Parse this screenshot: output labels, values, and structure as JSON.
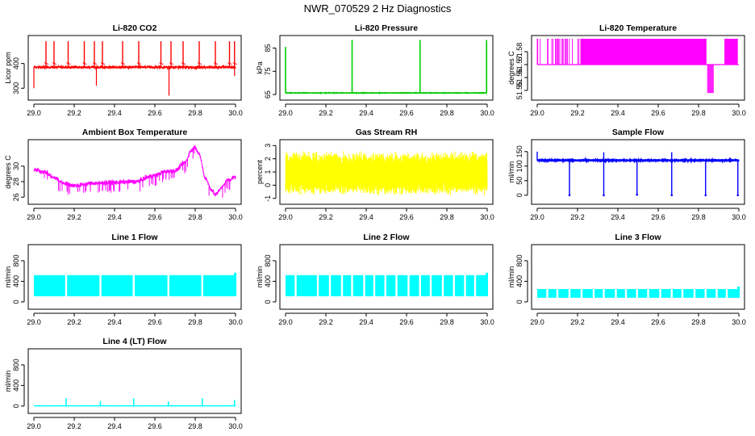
{
  "page_title": "NWR_070529  2 Hz Diagnostics",
  "chart_data": [
    {
      "type": "line",
      "title": "Li-820 CO2",
      "ylabel": "Licor ppm",
      "color": "#ff0000",
      "xlim": [
        29.0,
        30.0
      ],
      "xticks": [
        29.0,
        29.2,
        29.4,
        29.6,
        29.8,
        30.0
      ],
      "ylim": [
        265,
        500
      ],
      "yticks": [
        300,
        400
      ],
      "series": [
        {
          "pattern": "noisy_baseline_with_spikes",
          "baseline": 385,
          "noise": 8,
          "spikes_up": [
            29.06,
            29.1,
            29.17,
            29.25,
            29.3,
            29.34,
            29.44,
            29.52,
            29.63,
            29.68,
            29.74,
            29.82,
            29.9,
            29.97,
            29.995
          ],
          "spike_top": 490,
          "spikes_down": [
            [
              29.0,
              300
            ],
            [
              29.31,
              310
            ],
            [
              29.67,
              270
            ],
            [
              29.995,
              350
            ]
          ]
        }
      ]
    },
    {
      "type": "line",
      "title": "Li-820 Pressure",
      "ylabel": "kPa",
      "color": "#00cc00",
      "xlim": [
        29.0,
        30.0
      ],
      "xticks": [
        29.0,
        29.2,
        29.4,
        29.6,
        29.8,
        30.0
      ],
      "ylim": [
        64,
        89
      ],
      "yticks": [
        65,
        75,
        85
      ],
      "series": [
        {
          "pattern": "flat_with_spikes",
          "baseline": 65.7,
          "noise": 0.15,
          "spikes_up": [
            [
              29.0,
              85.5
            ],
            [
              29.33,
              88.5
            ],
            [
              29.667,
              88.5
            ],
            [
              29.997,
              88.5
            ]
          ]
        }
      ]
    },
    {
      "type": "line",
      "title": "Li-820 Temperature",
      "ylabel": "degrees C",
      "color": "#ff00ff",
      "xlim": [
        29.0,
        30.0
      ],
      "xticks": [
        29.0,
        29.2,
        29.4,
        29.6,
        29.8,
        30.0
      ],
      "ylim": [
        51.545,
        51.59
      ],
      "yticks": [
        51.55,
        51.56,
        51.57,
        51.58
      ],
      "series": [
        {
          "pattern": "quantized_toggle",
          "low": 51.57,
          "high": 51.59,
          "dip": 51.548,
          "dense_ranges": [
            [
              29.22,
              29.84
            ],
            [
              29.93,
              29.995
            ]
          ],
          "sparse_ranges": [
            [
              29.0,
              29.22
            ]
          ],
          "dip_range": [
            29.845,
            29.875
          ]
        }
      ]
    },
    {
      "type": "line",
      "title": "Ambient Box Temperature",
      "ylabel": "degrees C",
      "color": "#ff00ff",
      "xlim": [
        29.0,
        30.0
      ],
      "xticks": [
        29.0,
        29.2,
        29.4,
        29.6,
        29.8,
        30.0
      ],
      "ylim": [
        25.5,
        33.0
      ],
      "yticks": [
        26,
        28,
        30
      ],
      "series": [
        {
          "pattern": "smooth_curve_noisy",
          "noise": 0.5,
          "x": [
            29.0,
            29.05,
            29.1,
            29.15,
            29.2,
            29.3,
            29.4,
            29.5,
            29.6,
            29.65,
            29.7,
            29.75,
            29.78,
            29.8,
            29.82,
            29.85,
            29.88,
            29.9,
            29.93,
            29.96,
            30.0
          ],
          "y": [
            29.5,
            29.3,
            28.5,
            27.8,
            27.5,
            27.8,
            27.9,
            28.0,
            28.8,
            29.3,
            29.4,
            30.5,
            32.0,
            32.5,
            31.5,
            28.5,
            27.0,
            26.3,
            27.2,
            28.2,
            28.6
          ]
        }
      ]
    },
    {
      "type": "line",
      "title": "Gas Stream RH",
      "ylabel": "percent",
      "color": "#ffff00",
      "xlim": [
        29.0,
        30.0
      ],
      "xticks": [
        29.0,
        29.2,
        29.4,
        29.6,
        29.8,
        30.0
      ],
      "ylim": [
        -1.2,
        3.2
      ],
      "yticks": [
        -1,
        0,
        1,
        2,
        3
      ],
      "series": [
        {
          "pattern": "dense_band",
          "low": -0.8,
          "high": 2.6,
          "center": 1.0
        }
      ]
    },
    {
      "type": "line",
      "title": "Sample Flow",
      "ylabel": "ml/min",
      "color": "#0000ff",
      "xlim": [
        29.0,
        30.0
      ],
      "xticks": [
        29.0,
        29.2,
        29.4,
        29.6,
        29.8,
        30.0
      ],
      "ylim": [
        -20,
        180
      ],
      "yticks": [
        0,
        50,
        100,
        150
      ],
      "series": [
        {
          "pattern": "flat_with_drops",
          "baseline": 120,
          "noise": 2,
          "spikes_up": [
            [
              29.0,
              150
            ],
            [
              29.33,
              148
            ],
            [
              29.667,
              148
            ]
          ],
          "drops": [
            [
              29.16,
              0
            ],
            [
              29.33,
              0
            ],
            [
              29.495,
              2
            ],
            [
              29.667,
              0
            ],
            [
              29.835,
              0
            ],
            [
              29.995,
              0
            ]
          ]
        }
      ]
    },
    {
      "type": "area",
      "title": "Line 1 Flow",
      "ylabel": "ml/min",
      "color": "#00ffff",
      "xlim": [
        29.0,
        30.0
      ],
      "xticks": [
        29.0,
        29.2,
        29.4,
        29.6,
        29.8,
        30.0
      ],
      "ylim": [
        -80,
        1050
      ],
      "yticks": [
        0,
        400,
        800
      ],
      "series": [
        {
          "pattern": "filled_band",
          "low": 110,
          "high": 520,
          "gaps": [
            29.16,
            29.33,
            29.495,
            29.667,
            29.835
          ]
        }
      ]
    },
    {
      "type": "area",
      "title": "Line 2 Flow",
      "ylabel": "ml/min",
      "color": "#00ffff",
      "xlim": [
        29.0,
        30.0
      ],
      "xticks": [
        29.0,
        29.2,
        29.4,
        29.6,
        29.8,
        30.0
      ],
      "ylim": [
        -80,
        1050
      ],
      "yticks": [
        0,
        400,
        800
      ],
      "series": [
        {
          "pattern": "filled_band",
          "low": 110,
          "high": 520,
          "gaps": [
            29.05,
            29.16,
            29.22,
            29.28,
            29.33,
            29.39,
            29.44,
            29.495,
            29.55,
            29.61,
            29.667,
            29.72,
            29.78,
            29.835,
            29.89,
            29.94
          ]
        }
      ]
    },
    {
      "type": "area",
      "title": "Line 3 Flow",
      "ylabel": "ml/min",
      "color": "#00ffff",
      "xlim": [
        29.0,
        30.0
      ],
      "xticks": [
        29.0,
        29.2,
        29.4,
        29.6,
        29.8,
        30.0
      ],
      "ylim": [
        -80,
        1050
      ],
      "yticks": [
        0,
        400,
        800
      ],
      "series": [
        {
          "pattern": "filled_band",
          "low": 80,
          "high": 250,
          "gaps": [
            29.05,
            29.1,
            29.16,
            29.22,
            29.28,
            29.33,
            29.39,
            29.44,
            29.495,
            29.55,
            29.61,
            29.667,
            29.72,
            29.78,
            29.835,
            29.89,
            29.94
          ]
        }
      ]
    },
    {
      "type": "line",
      "title": "Line 4 (LT) Flow",
      "ylabel": "ml/min",
      "color": "#00ffff",
      "xlim": [
        29.0,
        30.0
      ],
      "xticks": [
        29.0,
        29.2,
        29.4,
        29.6,
        29.8,
        30.0
      ],
      "ylim": [
        -80,
        1050
      ],
      "yticks": [
        0,
        400,
        800
      ],
      "series": [
        {
          "pattern": "flat_with_spikes",
          "baseline": 5,
          "noise": 1,
          "spikes_up": [
            [
              29.16,
              150
            ],
            [
              29.33,
              100
            ],
            [
              29.495,
              150
            ],
            [
              29.667,
              90
            ],
            [
              29.835,
              150
            ],
            [
              29.995,
              120
            ]
          ]
        }
      ]
    }
  ]
}
